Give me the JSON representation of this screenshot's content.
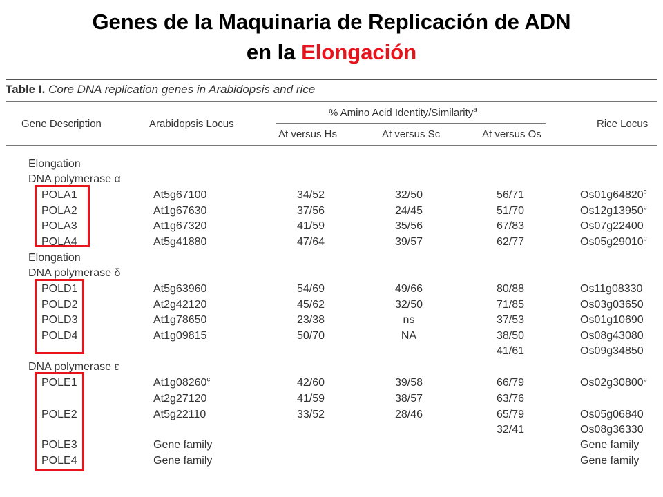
{
  "slide": {
    "title_line1": "Genes de la Maquinaria de Replicación de ADN",
    "title_line2_prefix": "en la ",
    "title_line2_highlight": "Elongación",
    "highlight_color": "#e8141b"
  },
  "table": {
    "title_bold": "Table I.",
    "title_italic": "Core DNA replication genes in Arabidopsis and rice",
    "headers": {
      "gene_description": "Gene Description",
      "arabidopsis_locus": "Arabidopsis Locus",
      "identity_group": "% Amino Acid Identity/Similarity",
      "identity_group_note": "a",
      "at_vs_hs": "At versus Hs",
      "at_vs_sc": "At versus Sc",
      "at_vs_os": "At versus Os",
      "rice_locus": "Rice Locus"
    },
    "sections": {
      "s1_line1": "Elongation",
      "s1_line2": "DNA polymerase α",
      "s2_line1": "Elongation",
      "s2_line2": "DNA polymerase δ",
      "s3_line1": "DNA polymerase ε"
    },
    "rows": [
      {
        "gene": "POLA1",
        "at": "At5g67100",
        "at_sup": "",
        "hs": "34/52",
        "sc": "32/50",
        "os": "56/71",
        "rice": "Os01g64820",
        "rice_sup": "c"
      },
      {
        "gene": "POLA2",
        "at": "At1g67630",
        "at_sup": "",
        "hs": "37/56",
        "sc": "24/45",
        "os": "51/70",
        "rice": "Os12g13950",
        "rice_sup": "c"
      },
      {
        "gene": "POLA3",
        "at": "At1g67320",
        "at_sup": "",
        "hs": "41/59",
        "sc": "35/56",
        "os": "67/83",
        "rice": "Os07g22400",
        "rice_sup": ""
      },
      {
        "gene": "POLA4",
        "at": "At5g41880",
        "at_sup": "",
        "hs": "47/64",
        "sc": "39/57",
        "os": "62/77",
        "rice": "Os05g29010",
        "rice_sup": "c"
      },
      {
        "gene": "POLD1",
        "at": "At5g63960",
        "at_sup": "",
        "hs": "54/69",
        "sc": "49/66",
        "os": "80/88",
        "rice": "Os11g08330",
        "rice_sup": ""
      },
      {
        "gene": "POLD2",
        "at": "At2g42120",
        "at_sup": "",
        "hs": "45/62",
        "sc": "32/50",
        "os": "71/85",
        "rice": "Os03g03650",
        "rice_sup": ""
      },
      {
        "gene": "POLD3",
        "at": "At1g78650",
        "at_sup": "",
        "hs": "23/38",
        "sc": "ns",
        "os": "37/53",
        "rice": "Os01g10690",
        "rice_sup": ""
      },
      {
        "gene": "POLD4",
        "at": "At1g09815",
        "at_sup": "",
        "hs": "50/70",
        "sc": "NA",
        "os": "38/50",
        "rice": "Os08g43080",
        "rice_sup": ""
      },
      {
        "gene": "",
        "at": "",
        "at_sup": "",
        "hs": "",
        "sc": "",
        "os": "41/61",
        "rice": "Os09g34850",
        "rice_sup": ""
      },
      {
        "gene": "POLE1",
        "at": "At1g08260",
        "at_sup": "c",
        "hs": "42/60",
        "sc": "39/58",
        "os": "66/79",
        "rice": "Os02g30800",
        "rice_sup": "c"
      },
      {
        "gene": "",
        "at": "At2g27120",
        "at_sup": "",
        "hs": "41/59",
        "sc": "38/57",
        "os": "63/76",
        "rice": "",
        "rice_sup": ""
      },
      {
        "gene": "POLE2",
        "at": "At5g22110",
        "at_sup": "",
        "hs": "33/52",
        "sc": "28/46",
        "os": "65/79",
        "rice": "Os05g06840",
        "rice_sup": ""
      },
      {
        "gene": "",
        "at": "",
        "at_sup": "",
        "hs": "",
        "sc": "",
        "os": "32/41",
        "rice": "Os08g36330",
        "rice_sup": ""
      },
      {
        "gene": "POLE3",
        "at": "Gene family",
        "at_sup": "",
        "hs": "",
        "sc": "",
        "os": "",
        "rice": "Gene family",
        "rice_sup": ""
      },
      {
        "gene": "POLE4",
        "at": "Gene family",
        "at_sup": "",
        "hs": "",
        "sc": "",
        "os": "",
        "rice": "Gene family",
        "rice_sup": ""
      }
    ]
  }
}
